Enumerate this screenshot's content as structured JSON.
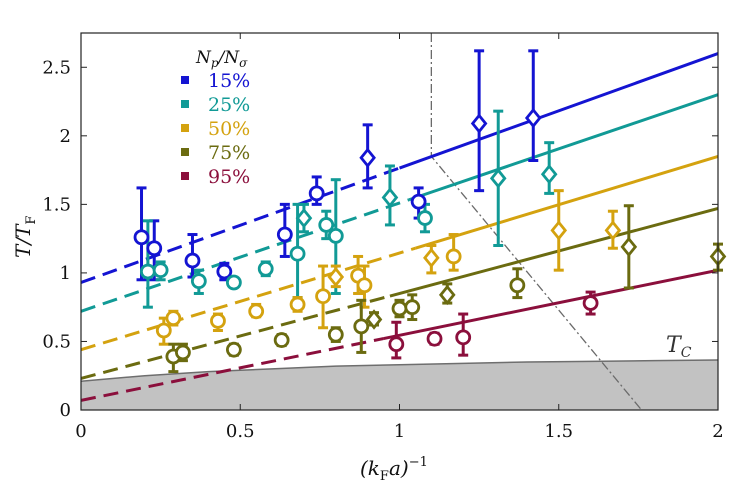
{
  "chart_data": {
    "type": "scatter",
    "xlabel": "(k_F a)^{-1}",
    "xlabel_parts": {
      "open": "(k",
      "sub1": "F",
      "mid": "a)",
      "sup": "−1"
    },
    "ylabel": "T/T_F",
    "ylabel_parts": {
      "main": "T/T",
      "sub": "F"
    },
    "xlim": [
      0,
      2
    ],
    "ylim": [
      0,
      2.75
    ],
    "x_ticks": [
      0,
      0.5,
      1,
      1.5,
      2
    ],
    "x_tick_labels": [
      "0",
      "0.5",
      "1",
      "1.5",
      "2"
    ],
    "y_ticks": [
      0,
      0.5,
      1,
      1.5,
      2,
      2.5
    ],
    "y_tick_labels": [
      "0",
      "0.5",
      "1",
      "1.5",
      "2",
      "2.5"
    ],
    "grid": false,
    "legend_title": "N_p/N_σ",
    "legend_title_parts": {
      "a": "N",
      "a_sub": "p",
      "slash": "/",
      "b": "N",
      "b_sub": "σ"
    },
    "legend_position": "top-left",
    "tc_label": "T_C",
    "tc_label_parts": {
      "main": "T",
      "sub": "C"
    },
    "tc_curve": {
      "x": [
        0,
        0.2,
        0.4,
        0.6,
        0.8,
        1.0,
        1.2,
        1.4,
        1.6,
        1.8,
        2.0
      ],
      "y": [
        0.21,
        0.25,
        0.28,
        0.3,
        0.32,
        0.33,
        0.34,
        0.35,
        0.355,
        0.36,
        0.365
      ]
    },
    "phase_boundary": {
      "x": [
        1.1,
        1.1,
        1.76
      ],
      "y": [
        2.75,
        1.85,
        0
      ]
    },
    "series": [
      {
        "name": "15%",
        "color": "#1414d2",
        "points": [
          {
            "x": 0.19,
            "y": 1.26,
            "lo": 0.95,
            "hi": 1.62,
            "marker": "circle"
          },
          {
            "x": 0.23,
            "y": 1.18,
            "lo": 0.95,
            "hi": 1.38,
            "marker": "circle"
          },
          {
            "x": 0.35,
            "y": 1.09,
            "lo": 0.97,
            "hi": 1.28,
            "marker": "circle"
          },
          {
            "x": 0.45,
            "y": 1.01,
            "lo": 0.95,
            "hi": 1.07,
            "marker": "circle"
          },
          {
            "x": 0.64,
            "y": 1.28,
            "lo": 1.12,
            "hi": 1.5,
            "marker": "circle"
          },
          {
            "x": 0.74,
            "y": 1.58,
            "lo": 1.5,
            "hi": 1.7,
            "marker": "circle"
          },
          {
            "x": 0.9,
            "y": 1.84,
            "lo": 1.62,
            "hi": 2.08,
            "marker": "diamond"
          },
          {
            "x": 1.06,
            "y": 1.52,
            "lo": 1.4,
            "hi": 1.62,
            "marker": "circle"
          },
          {
            "x": 1.25,
            "y": 2.09,
            "lo": 1.6,
            "hi": 2.62,
            "marker": "diamond"
          },
          {
            "x": 1.42,
            "y": 2.13,
            "lo": 1.82,
            "hi": 2.62,
            "marker": "diamond"
          }
        ],
        "fit": {
          "x0": 0,
          "y0": 0.93,
          "x_break": 1.0,
          "x1": 2,
          "y1": 2.6
        }
      },
      {
        "name": "25%",
        "color": "#119a96",
        "points": [
          {
            "x": 0.21,
            "y": 1.01,
            "lo": 0.75,
            "hi": 1.38,
            "marker": "circle"
          },
          {
            "x": 0.25,
            "y": 1.02,
            "lo": 0.95,
            "hi": 1.08,
            "marker": "circle"
          },
          {
            "x": 0.37,
            "y": 0.94,
            "lo": 0.85,
            "hi": 1.02,
            "marker": "circle"
          },
          {
            "x": 0.48,
            "y": 0.93,
            "lo": 0.9,
            "hi": 0.96,
            "marker": "circle"
          },
          {
            "x": 0.58,
            "y": 1.03,
            "lo": 0.98,
            "hi": 1.08,
            "marker": "circle"
          },
          {
            "x": 0.68,
            "y": 1.14,
            "lo": 0.82,
            "hi": 1.5,
            "marker": "circle"
          },
          {
            "x": 0.7,
            "y": 1.4,
            "lo": 1.3,
            "hi": 1.5,
            "marker": "diamond"
          },
          {
            "x": 0.77,
            "y": 1.35,
            "lo": 1.25,
            "hi": 1.45,
            "marker": "circle"
          },
          {
            "x": 0.8,
            "y": 1.27,
            "lo": 0.85,
            "hi": 1.68,
            "marker": "circle"
          },
          {
            "x": 0.97,
            "y": 1.55,
            "lo": 1.35,
            "hi": 1.78,
            "marker": "diamond"
          },
          {
            "x": 1.08,
            "y": 1.4,
            "lo": 1.3,
            "hi": 1.5,
            "marker": "circle"
          },
          {
            "x": 1.31,
            "y": 1.69,
            "lo": 1.2,
            "hi": 2.18,
            "marker": "diamond"
          },
          {
            "x": 1.47,
            "y": 1.72,
            "lo": 1.58,
            "hi": 1.95,
            "marker": "diamond"
          }
        ],
        "fit": {
          "x0": 0,
          "y0": 0.72,
          "x_break": 1.03,
          "x1": 2,
          "y1": 2.3
        }
      },
      {
        "name": "50%",
        "color": "#d4a20f",
        "points": [
          {
            "x": 0.26,
            "y": 0.58,
            "lo": 0.48,
            "hi": 0.67,
            "marker": "circle"
          },
          {
            "x": 0.29,
            "y": 0.67,
            "lo": 0.62,
            "hi": 0.72,
            "marker": "circle"
          },
          {
            "x": 0.43,
            "y": 0.65,
            "lo": 0.58,
            "hi": 0.7,
            "marker": "circle"
          },
          {
            "x": 0.55,
            "y": 0.72,
            "lo": 0.68,
            "hi": 0.77,
            "marker": "circle"
          },
          {
            "x": 0.68,
            "y": 0.77,
            "lo": 0.72,
            "hi": 0.82,
            "marker": "circle"
          },
          {
            "x": 0.76,
            "y": 0.83,
            "lo": 0.6,
            "hi": 1.05,
            "marker": "circle"
          },
          {
            "x": 0.8,
            "y": 0.97,
            "lo": 0.9,
            "hi": 1.05,
            "marker": "diamond"
          },
          {
            "x": 0.87,
            "y": 0.98,
            "lo": 0.85,
            "hi": 1.12,
            "marker": "circle"
          },
          {
            "x": 0.89,
            "y": 0.91,
            "lo": 0.75,
            "hi": 1.05,
            "marker": "circle"
          },
          {
            "x": 1.1,
            "y": 1.11,
            "lo": 1.0,
            "hi": 1.2,
            "marker": "diamond"
          },
          {
            "x": 1.17,
            "y": 1.12,
            "lo": 1.02,
            "hi": 1.28,
            "marker": "circle"
          },
          {
            "x": 1.5,
            "y": 1.31,
            "lo": 1.02,
            "hi": 1.6,
            "marker": "diamond"
          },
          {
            "x": 1.67,
            "y": 1.31,
            "lo": 1.18,
            "hi": 1.45,
            "marker": "diamond"
          }
        ],
        "fit": {
          "x0": 0,
          "y0": 0.44,
          "x_break": 1.05,
          "x1": 2,
          "y1": 1.85
        }
      },
      {
        "name": "75%",
        "color": "#6b6b10",
        "points": [
          {
            "x": 0.29,
            "y": 0.39,
            "lo": 0.28,
            "hi": 0.48,
            "marker": "circle"
          },
          {
            "x": 0.32,
            "y": 0.42,
            "lo": 0.36,
            "hi": 0.48,
            "marker": "circle"
          },
          {
            "x": 0.48,
            "y": 0.44,
            "lo": 0.4,
            "hi": 0.48,
            "marker": "circle"
          },
          {
            "x": 0.63,
            "y": 0.51,
            "lo": 0.47,
            "hi": 0.55,
            "marker": "circle"
          },
          {
            "x": 0.8,
            "y": 0.55,
            "lo": 0.5,
            "hi": 0.6,
            "marker": "circle"
          },
          {
            "x": 0.88,
            "y": 0.61,
            "lo": 0.42,
            "hi": 0.8,
            "marker": "circle"
          },
          {
            "x": 0.92,
            "y": 0.66,
            "lo": 0.62,
            "hi": 0.71,
            "marker": "diamond"
          },
          {
            "x": 1.0,
            "y": 0.74,
            "lo": 0.68,
            "hi": 0.8,
            "marker": "circle"
          },
          {
            "x": 1.04,
            "y": 0.75,
            "lo": 0.66,
            "hi": 0.84,
            "marker": "circle"
          },
          {
            "x": 1.15,
            "y": 0.84,
            "lo": 0.78,
            "hi": 0.92,
            "marker": "diamond"
          },
          {
            "x": 1.37,
            "y": 0.91,
            "lo": 0.82,
            "hi": 1.03,
            "marker": "circle"
          },
          {
            "x": 1.72,
            "y": 1.19,
            "lo": 0.89,
            "hi": 1.49,
            "marker": "diamond"
          },
          {
            "x": 2.0,
            "y": 1.12,
            "lo": 1.02,
            "hi": 1.21,
            "marker": "diamond"
          }
        ],
        "fit": {
          "x0": 0,
          "y0": 0.23,
          "x_break": 0.97,
          "x1": 2,
          "y1": 1.47
        }
      },
      {
        "name": "95%",
        "color": "#8b0f3c",
        "points": [
          {
            "x": 0.99,
            "y": 0.48,
            "lo": 0.38,
            "hi": 0.64,
            "marker": "circle"
          },
          {
            "x": 1.11,
            "y": 0.52,
            "lo": 0.48,
            "hi": 0.56,
            "marker": "circle"
          },
          {
            "x": 1.2,
            "y": 0.53,
            "lo": 0.4,
            "hi": 0.7,
            "marker": "circle"
          },
          {
            "x": 1.6,
            "y": 0.78,
            "lo": 0.7,
            "hi": 0.86,
            "marker": "circle"
          }
        ],
        "fit": {
          "x0": 0,
          "y0": 0.07,
          "x_break": 0.95,
          "x1": 2,
          "y1": 1.02
        }
      }
    ]
  }
}
